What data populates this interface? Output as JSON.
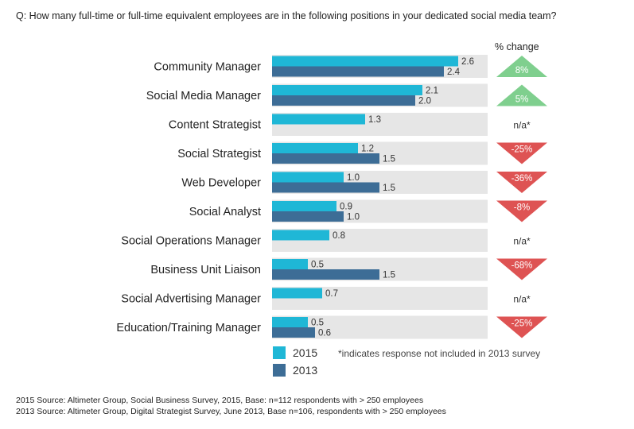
{
  "question": "Q: How many full-time or full-time equivalent employees are in the following positions in your dedicated social media team?",
  "change_header": "% change",
  "footnote": "*indicates response not included in 2013 survey",
  "sources": [
    "2015 Source: Altimeter Group, Social Business Survey, 2015, Base: n=112 respondents with > 250 employees",
    "2013 Source: Altimeter Group, Digital Strategist Survey, June 2013, Base n=106, respondents with > 250 employees"
  ],
  "colors": {
    "series_2015": "#1fb7d6",
    "series_2013": "#3d6d96",
    "track": "#e6e6e6",
    "up": "#7fcf8e",
    "down": "#de5353"
  },
  "chart_data": {
    "type": "bar",
    "orientation": "horizontal",
    "categories": [
      "Community Manager",
      "Social Media Manager",
      "Content Strategist",
      "Social Strategist",
      "Web Developer",
      "Social Analyst",
      "Social Operations Manager",
      "Business Unit Liaison",
      "Social Advertising Manager",
      "Education/Training Manager"
    ],
    "series": [
      {
        "name": "2015",
        "values": [
          2.6,
          2.1,
          1.3,
          1.2,
          1.0,
          0.9,
          0.8,
          0.5,
          0.7,
          0.5
        ]
      },
      {
        "name": "2013",
        "values": [
          2.4,
          2.0,
          null,
          1.5,
          1.5,
          1.0,
          null,
          1.5,
          null,
          0.6
        ]
      }
    ],
    "value_labels": {
      "2015": [
        "2.6",
        "2.1",
        "1.3",
        "1.2",
        "1.0",
        "0.9",
        "0.8",
        "0.5",
        "0.7",
        "0.5"
      ],
      "2013": [
        "2.4",
        "2.0",
        "",
        "1.5",
        "1.5",
        "1.0",
        "",
        "1.5",
        "",
        "0.6"
      ]
    },
    "percent_change": [
      "8%",
      "5%",
      "n/a*",
      "-25%",
      "-36%",
      "-8%",
      "n/a*",
      "-68%",
      "n/a*",
      "-25%"
    ],
    "change_direction": [
      "up",
      "up",
      "na",
      "down",
      "down",
      "down",
      "na",
      "down",
      "na",
      "down"
    ],
    "xlim": [
      0,
      3.0
    ],
    "grid": false,
    "legend_position": "bottom-left"
  }
}
